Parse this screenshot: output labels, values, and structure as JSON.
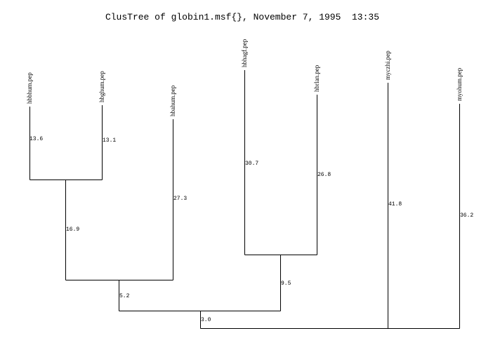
{
  "title": "ClusTree of globin1.msf{}, November 7, 1995  13:35",
  "leaves": [
    {
      "label": "hbbhum.pep",
      "length": "13.6"
    },
    {
      "label": "hbghum.pep",
      "length": "13.1"
    },
    {
      "label": "hbahum.pep",
      "length": "27.3"
    },
    {
      "label": "hbhagf.pep",
      "length": "30.7"
    },
    {
      "label": "hbrlan.pep",
      "length": "26.8"
    },
    {
      "label": "myczhi.pep",
      "length": "41.8"
    },
    {
      "label": "myohum.pep",
      "length": "36.2"
    }
  ],
  "nodes": [
    {
      "length": "16.9"
    },
    {
      "length": "5.2"
    },
    {
      "length": "9.5"
    },
    {
      "length": "3.0"
    }
  ]
}
